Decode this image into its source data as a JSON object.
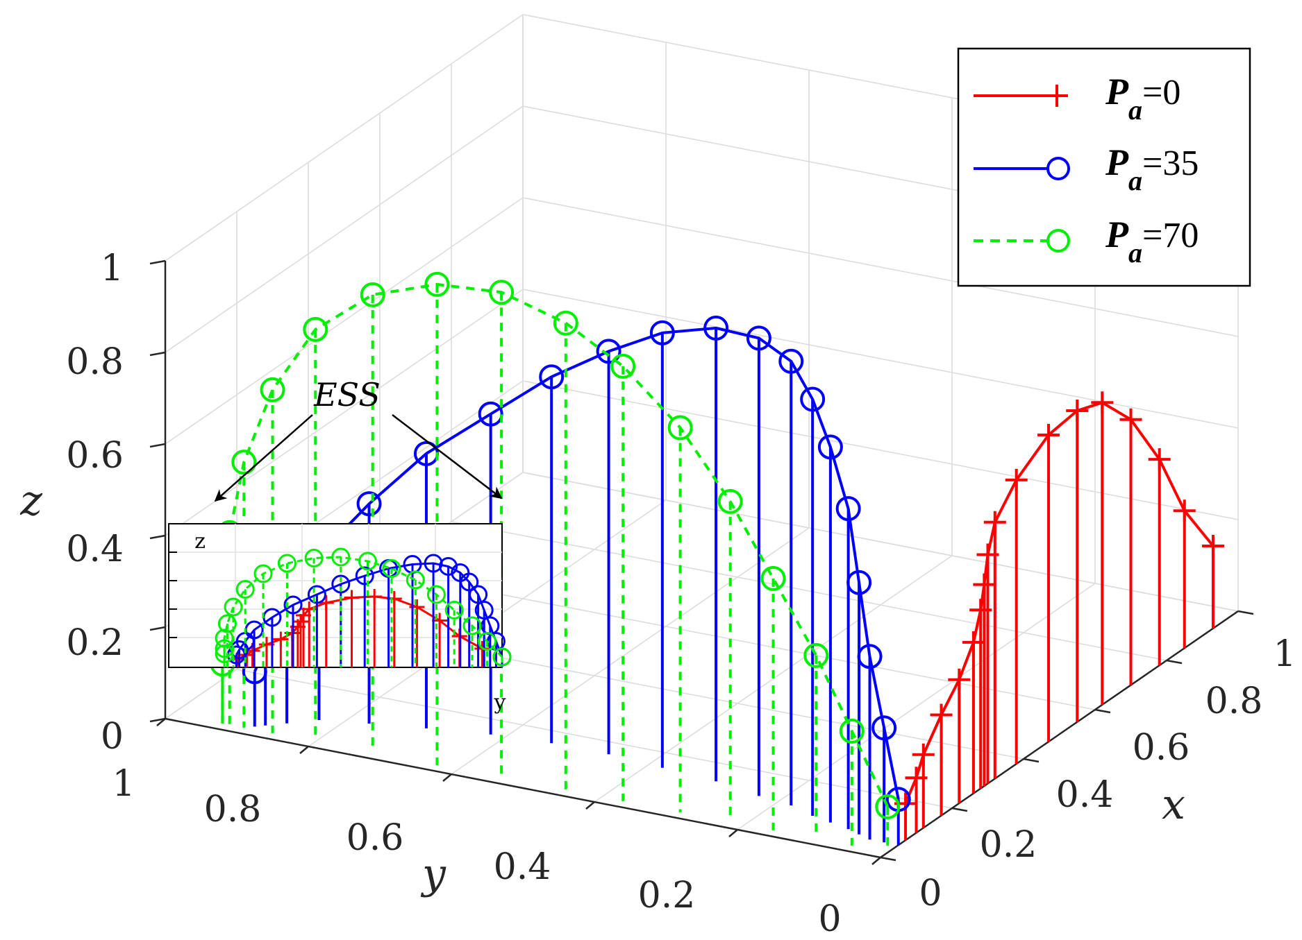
{
  "chart_data": {
    "type": "line3d",
    "axes": {
      "x": {
        "label": "x",
        "ticks": [
          "0",
          "0.2",
          "0.4",
          "0.6",
          "0.8",
          "1"
        ],
        "range": [
          0,
          1
        ]
      },
      "y": {
        "label": "y",
        "ticks": [
          "0",
          "0.2",
          "0.4",
          "0.6",
          "0.8",
          "1"
        ],
        "range": [
          0,
          1
        ]
      },
      "z": {
        "label": "z",
        "ticks": [
          "0",
          "0.2",
          "0.4",
          "0.6",
          "0.8",
          "1"
        ],
        "range": [
          0,
          1
        ]
      }
    },
    "grid": true,
    "legend_position": "top-right",
    "series": [
      {
        "name_prefix": "P",
        "name_sub": "a",
        "name_suffix": "=0",
        "color": "#ff0000",
        "marker": "plus",
        "style": "solid",
        "points": [
          [
            0.93,
            0.0,
            0.18
          ],
          [
            0.85,
            0.0,
            0.3
          ],
          [
            0.78,
            0.0,
            0.45
          ],
          [
            0.7,
            0.0,
            0.58
          ],
          [
            0.62,
            0.0,
            0.66
          ],
          [
            0.55,
            0.0,
            0.68
          ],
          [
            0.47,
            0.0,
            0.67
          ],
          [
            0.38,
            0.0,
            0.62
          ],
          [
            0.32,
            0.0,
            0.56
          ],
          [
            0.3,
            0.0,
            0.5
          ],
          [
            0.29,
            0.0,
            0.44
          ],
          [
            0.28,
            0.0,
            0.39
          ],
          [
            0.26,
            0.0,
            0.33
          ],
          [
            0.22,
            0.0,
            0.27
          ],
          [
            0.17,
            0.0,
            0.22
          ],
          [
            0.12,
            0.0,
            0.16
          ],
          [
            0.1,
            0.0,
            0.12
          ],
          [
            0.07,
            0.0,
            0.08
          ]
        ]
      },
      {
        "name_prefix": "P",
        "name_sub": "a",
        "name_suffix": "=35",
        "color": "#0000ff",
        "marker": "circle",
        "style": "solid",
        "points": [
          [
            0.05,
            0.0,
            0.1
          ],
          [
            0.05,
            0.02,
            0.25
          ],
          [
            0.05,
            0.04,
            0.4
          ],
          [
            0.06,
            0.06,
            0.55
          ],
          [
            0.07,
            0.08,
            0.7
          ],
          [
            0.08,
            0.11,
            0.82
          ],
          [
            0.09,
            0.14,
            0.91
          ],
          [
            0.11,
            0.18,
            0.97
          ],
          [
            0.12,
            0.23,
            1.0
          ],
          [
            0.14,
            0.3,
            0.99
          ],
          [
            0.15,
            0.38,
            0.95
          ],
          [
            0.16,
            0.46,
            0.88
          ],
          [
            0.16,
            0.54,
            0.8
          ],
          [
            0.15,
            0.62,
            0.7
          ],
          [
            0.13,
            0.7,
            0.6
          ],
          [
            0.11,
            0.77,
            0.48
          ],
          [
            0.09,
            0.83,
            0.36
          ],
          [
            0.06,
            0.86,
            0.25
          ],
          [
            0.04,
            0.88,
            0.17
          ],
          [
            0.03,
            0.89,
            0.12
          ]
        ]
      },
      {
        "name_prefix": "P",
        "name_sub": "a",
        "name_suffix": "=70",
        "color": "#00ee00",
        "marker": "circle",
        "style": "dashed",
        "points": [
          [
            0.02,
            0.0,
            0.1
          ],
          [
            0.02,
            0.05,
            0.25
          ],
          [
            0.02,
            0.1,
            0.4
          ],
          [
            0.02,
            0.16,
            0.55
          ],
          [
            0.02,
            0.22,
            0.7
          ],
          [
            0.02,
            0.29,
            0.84
          ],
          [
            0.02,
            0.37,
            0.95
          ],
          [
            0.02,
            0.45,
            1.02
          ],
          [
            0.02,
            0.54,
            1.06
          ],
          [
            0.02,
            0.63,
            1.05
          ],
          [
            0.02,
            0.72,
            1.0
          ],
          [
            0.02,
            0.8,
            0.9
          ],
          [
            0.02,
            0.86,
            0.75
          ],
          [
            0.02,
            0.9,
            0.58
          ],
          [
            0.02,
            0.92,
            0.42
          ],
          [
            0.02,
            0.93,
            0.28
          ],
          [
            0.02,
            0.93,
            0.18
          ],
          [
            0.02,
            0.93,
            0.13
          ]
        ]
      }
    ],
    "annotation": {
      "text": "ESS"
    },
    "inset": {
      "xlabel": "y",
      "ylabel": "z"
    }
  }
}
